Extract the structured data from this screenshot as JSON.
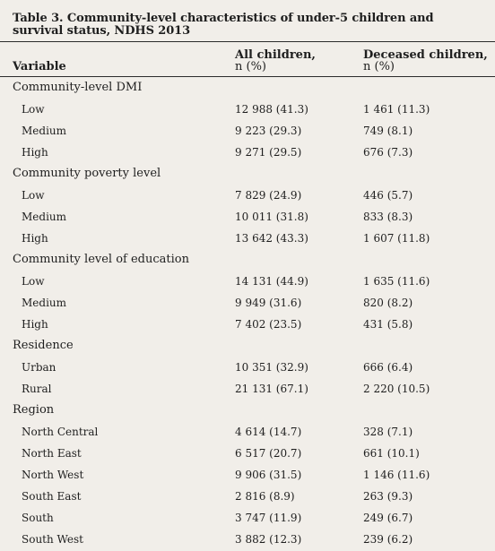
{
  "title": "Table 3. Community-level characteristics of under-5 children and survival status, NDHS 2013",
  "headers": {
    "variable": "Variable",
    "col1_name": "All children,",
    "col1_unit": "n (%)",
    "col2_name": "Deceased children,",
    "col2_unit": "n (%)"
  },
  "rows": [
    {
      "label": "Community-level DMI",
      "section": true,
      "c1": "",
      "c2": ""
    },
    {
      "label": "Low",
      "section": false,
      "c1": "12 988 (41.3)",
      "c2": "1 461 (11.3)"
    },
    {
      "label": "Medium",
      "section": false,
      "c1": "9 223 (29.3)",
      "c2": "749 (8.1)"
    },
    {
      "label": "High",
      "section": false,
      "c1": "9 271 (29.5)",
      "c2": "676 (7.3)"
    },
    {
      "label": "Community poverty level",
      "section": true,
      "c1": "",
      "c2": ""
    },
    {
      "label": "Low",
      "section": false,
      "c1": "7 829 (24.9)",
      "c2": "446 (5.7)"
    },
    {
      "label": "Medium",
      "section": false,
      "c1": "10 011 (31.8)",
      "c2": "833 (8.3)"
    },
    {
      "label": "High",
      "section": false,
      "c1": "13 642 (43.3)",
      "c2": "1 607 (11.8)"
    },
    {
      "label": "Community level of education",
      "section": true,
      "c1": "",
      "c2": ""
    },
    {
      "label": "Low",
      "section": false,
      "c1": "14 131 (44.9)",
      "c2": "1 635 (11.6)"
    },
    {
      "label": "Medium",
      "section": false,
      "c1": "9 949 (31.6)",
      "c2": "820 (8.2)"
    },
    {
      "label": "High",
      "section": false,
      "c1": "7 402 (23.5)",
      "c2": "431 (5.8)"
    },
    {
      "label": "Residence",
      "section": true,
      "c1": "",
      "c2": ""
    },
    {
      "label": "Urban",
      "section": false,
      "c1": "10 351 (32.9)",
      "c2": "666 (6.4)"
    },
    {
      "label": "Rural",
      "section": false,
      "c1": "21 131 (67.1)",
      "c2": "2 220 (10.5)"
    },
    {
      "label": "Region",
      "section": true,
      "c1": "",
      "c2": ""
    },
    {
      "label": "North Central",
      "section": false,
      "c1": "4 614 (14.7)",
      "c2": "328 (7.1)"
    },
    {
      "label": "North East",
      "section": false,
      "c1": "6 517 (20.7)",
      "c2": "661 (10.1)"
    },
    {
      "label": "North West",
      "section": false,
      "c1": "9 906 (31.5)",
      "c2": "1 146 (11.6)"
    },
    {
      "label": "South East",
      "section": false,
      "c1": "2 816 (8.9)",
      "c2": "263 (9.3)"
    },
    {
      "label": "South",
      "section": false,
      "c1": "3 747 (11.9)",
      "c2": "249 (6.7)"
    },
    {
      "label": "South West",
      "section": false,
      "c1": "3 882 (12.3)",
      "c2": "239 (6.2)"
    }
  ]
}
